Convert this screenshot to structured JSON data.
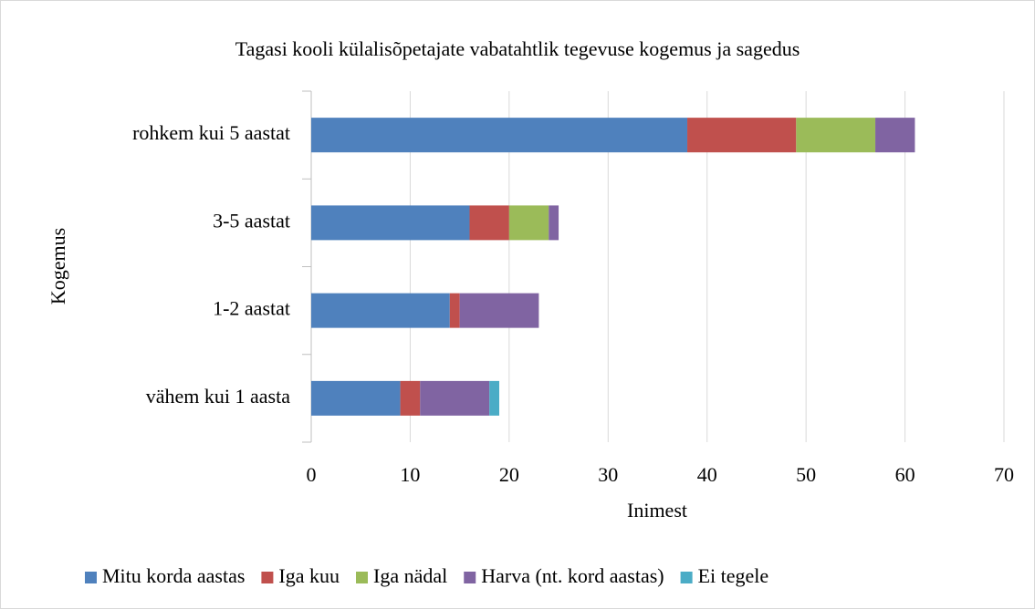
{
  "chart_data": {
    "type": "bar",
    "orientation": "horizontal",
    "stacked": true,
    "title": "Tagasi kooli külalisõpetajate vabatahtlik tegevuse kogemus ja sagedus",
    "x_label": "Inimest",
    "y_label": "Kogemus",
    "categories": [
      "rohkem kui 5 aastat",
      "3-5 aastat",
      "1-2 aastat",
      "vähem kui 1 aasta"
    ],
    "series": [
      {
        "name": "Mitu korda aastas",
        "color": "#4f81bd",
        "values": [
          38,
          16,
          14,
          9
        ]
      },
      {
        "name": "Iga kuu",
        "color": "#c0504d",
        "values": [
          11,
          4,
          1,
          2
        ]
      },
      {
        "name": "Iga nädal",
        "color": "#9bbb59",
        "values": [
          8,
          4,
          0,
          0
        ]
      },
      {
        "name": "Harva (nt. kord aastas)",
        "color": "#8064a2",
        "values": [
          4,
          1,
          8,
          7
        ]
      },
      {
        "name": "Ei tegele",
        "color": "#4bacc6",
        "values": [
          0,
          0,
          0,
          1
        ]
      }
    ],
    "xlim": [
      0,
      70
    ],
    "xticks": [
      0,
      10,
      20,
      30,
      40,
      50,
      60,
      70
    ],
    "grid": true,
    "legend": "bottom"
  }
}
